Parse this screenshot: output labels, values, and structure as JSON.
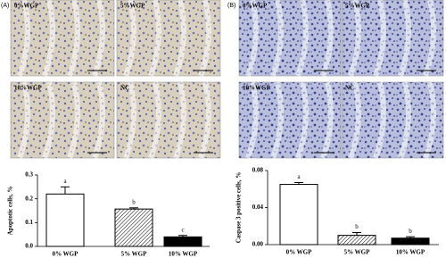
{
  "panels": [
    {
      "label": "(A)",
      "images": [
        "0%WGP",
        "5%WGP",
        "10%WGP",
        "NC"
      ]
    },
    {
      "label": "(B)",
      "images": [
        "0%WGP",
        "5%WGP",
        "10%WGP",
        "NC"
      ]
    }
  ],
  "chart_data": [
    {
      "type": "bar",
      "y_label": "Apoptotic cells, %",
      "categories": [
        "0% WGP",
        "5% WGP",
        "10% WGP"
      ],
      "values": [
        0.22,
        0.157,
        0.04
      ],
      "errors": [
        0.03,
        0.005,
        0.006
      ],
      "annotations": [
        "a",
        "b",
        "c"
      ],
      "bar_fills": [
        "#ffffff",
        "hatched",
        "#000000"
      ],
      "ylim": [
        0,
        0.3
      ],
      "yticks": [
        {
          "value": 0,
          "label": "0.0"
        },
        0.1,
        0.2,
        0.3
      ]
    },
    {
      "type": "bar",
      "y_label": "Caspase 3 positive cells, %",
      "categories": [
        "0% WGP",
        "5% WGP",
        "10% WGP"
      ],
      "values": [
        0.065,
        0.01,
        0.007
      ],
      "errors": [
        0.002,
        0.003,
        0.0015
      ],
      "annotations": [
        "a",
        "b",
        "b"
      ],
      "bar_fills": [
        "#ffffff",
        "hatched",
        "#000000"
      ],
      "ylim": [
        0,
        0.08
      ],
      "yticks": [
        {
          "value": 0,
          "label": "0.00"
        },
        {
          "value": 0.04,
          "label": "0.04"
        },
        {
          "value": 0.08,
          "label": "0.08"
        }
      ]
    }
  ]
}
